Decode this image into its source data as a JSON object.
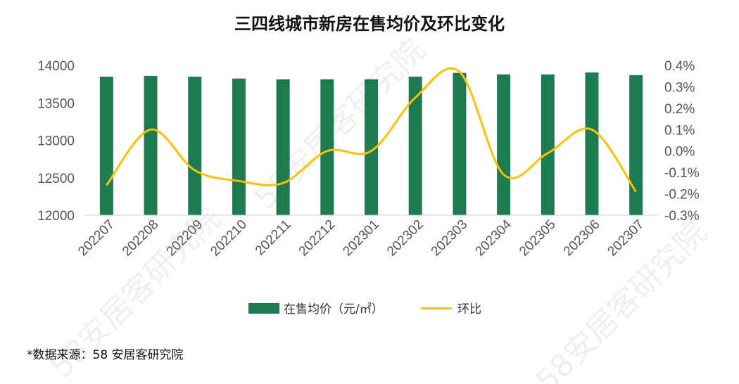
{
  "chart_data": {
    "type": "bar+line",
    "title": "三四线城市新房在售均价及环比变化",
    "categories": [
      "202207",
      "202208",
      "202209",
      "202210",
      "202211",
      "202212",
      "202301",
      "202302",
      "202303",
      "202304",
      "202305",
      "202306",
      "202307"
    ],
    "series": [
      {
        "name": "在售均价（元/㎡）",
        "type": "bar",
        "axis": "left",
        "color": "#1E7B4F",
        "values": [
          13850,
          13860,
          13850,
          13825,
          13815,
          13815,
          13815,
          13850,
          13900,
          13880,
          13880,
          13905,
          13870
        ]
      },
      {
        "name": "环比",
        "type": "line",
        "axis": "right",
        "color": "#FFC000",
        "values": [
          -0.16,
          0.1,
          -0.09,
          -0.14,
          -0.15,
          0.0,
          0.0,
          0.25,
          0.37,
          -0.11,
          -0.01,
          0.1,
          -0.19
        ]
      }
    ],
    "left_axis": {
      "ylim": [
        12000,
        14000
      ],
      "ticks": [
        "12000",
        "12500",
        "13000",
        "13500",
        "14000"
      ]
    },
    "right_axis": {
      "ylim": [
        -0.3,
        0.4
      ],
      "ticks": [
        "-0.3%",
        "-0.2%",
        "-0.1%",
        "0.0%",
        "0.1%",
        "0.2%",
        "0.3%",
        "0.4%"
      ]
    },
    "legend_position": "bottom-center",
    "grid": false
  },
  "source_note": "*数据来源：58 安居客研究院",
  "watermark_text": "58安居客研究院"
}
